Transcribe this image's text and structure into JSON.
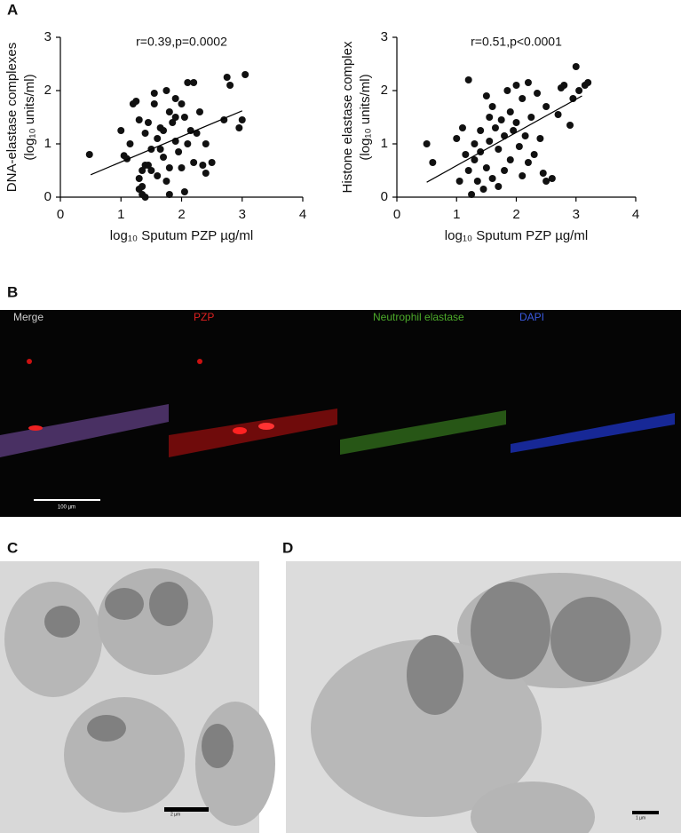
{
  "chart_data": [
    {
      "type": "scatter",
      "annotation": "r=0.39,p=0.0002",
      "y_label_lines": [
        "DNA-elastase complexes",
        "(log₁₀ units/ml)"
      ],
      "x_label": "log₁₀ Sputum PZP µg/ml",
      "x": [
        0.48,
        1.0,
        1.05,
        1.1,
        1.15,
        1.2,
        1.25,
        1.3,
        1.3,
        1.3,
        1.35,
        1.35,
        1.35,
        1.4,
        1.4,
        1.45,
        1.45,
        1.5,
        1.5,
        1.55,
        1.55,
        1.6,
        1.6,
        1.65,
        1.7,
        1.7,
        1.75,
        1.75,
        1.8,
        1.8,
        1.8,
        1.85,
        1.9,
        1.9,
        1.95,
        2.0,
        2.0,
        2.05,
        2.05,
        2.1,
        2.1,
        2.15,
        2.2,
        2.25,
        2.3,
        2.35,
        2.4,
        2.4,
        2.5,
        2.7,
        2.75,
        2.8,
        2.95,
        3.0,
        3.05,
        2.2,
        1.9,
        1.65,
        1.4
      ],
      "values": [
        0.8,
        1.25,
        0.78,
        0.72,
        1.0,
        1.75,
        1.8,
        1.45,
        0.35,
        0.15,
        0.2,
        0.5,
        0.05,
        0.6,
        1.2,
        1.4,
        0.6,
        0.9,
        0.5,
        1.75,
        1.95,
        1.1,
        0.4,
        1.3,
        1.25,
        0.75,
        2.0,
        0.3,
        1.6,
        0.05,
        0.55,
        1.4,
        1.85,
        1.05,
        0.85,
        1.75,
        0.55,
        1.5,
        0.1,
        2.15,
        1.0,
        1.25,
        0.65,
        1.2,
        1.6,
        0.6,
        0.45,
        1.0,
        0.65,
        1.45,
        2.25,
        2.1,
        1.3,
        1.45,
        2.3,
        2.15,
        1.5,
        0.9,
        0.0
      ],
      "fit": {
        "x": [
          0.5,
          3.0
        ],
        "y": [
          0.42,
          1.62
        ]
      },
      "color": "#111111",
      "xlim": [
        0,
        4
      ],
      "ylim": [
        0,
        3
      ],
      "xticks": [
        0,
        1,
        2,
        3,
        4
      ],
      "yticks": [
        0,
        1,
        2,
        3
      ]
    },
    {
      "type": "scatter",
      "annotation": "r=0.51,p<0.0001",
      "y_label_lines": [
        "Histone elastase  complex",
        "(log₁₀ units/ml)"
      ],
      "x_label": "log₁₀ Sputum PZP µg/ml",
      "x": [
        0.5,
        0.6,
        1.0,
        1.05,
        1.1,
        1.15,
        1.2,
        1.2,
        1.25,
        1.3,
        1.3,
        1.35,
        1.4,
        1.4,
        1.45,
        1.5,
        1.5,
        1.55,
        1.55,
        1.6,
        1.6,
        1.65,
        1.7,
        1.7,
        1.75,
        1.8,
        1.8,
        1.85,
        1.9,
        1.9,
        2.0,
        2.0,
        2.05,
        2.1,
        2.1,
        2.15,
        2.2,
        2.25,
        2.3,
        2.35,
        2.4,
        2.45,
        2.5,
        2.5,
        2.6,
        2.7,
        2.75,
        2.8,
        2.9,
        2.95,
        3.0,
        3.05,
        3.15,
        3.2,
        2.2,
        1.95
      ],
      "values": [
        1.0,
        0.65,
        1.1,
        0.3,
        1.3,
        0.8,
        2.2,
        0.5,
        0.05,
        0.7,
        1.0,
        0.3,
        1.25,
        0.85,
        0.15,
        1.9,
        0.55,
        1.5,
        1.05,
        0.35,
        1.7,
        1.3,
        0.9,
        0.2,
        1.45,
        1.15,
        0.5,
        2.0,
        1.6,
        0.7,
        1.4,
        2.1,
        0.95,
        1.85,
        0.4,
        1.15,
        2.15,
        1.5,
        0.8,
        1.95,
        1.1,
        0.45,
        1.7,
        0.3,
        0.35,
        1.55,
        2.05,
        2.1,
        1.35,
        1.85,
        2.45,
        2.0,
        2.1,
        2.15,
        0.65,
        1.25
      ],
      "fit": {
        "x": [
          0.5,
          3.1
        ],
        "y": [
          0.28,
          1.9
        ]
      },
      "color": "#111111",
      "xlim": [
        0,
        4
      ],
      "ylim": [
        0,
        3
      ],
      "xticks": [
        0,
        1,
        2,
        3,
        4
      ],
      "yticks": [
        0,
        1,
        2,
        3
      ]
    }
  ],
  "panels": {
    "labels": [
      "A",
      "B",
      "C",
      "D"
    ],
    "b_channels": [
      "Merge",
      "PZP",
      "Neutrophil elastase",
      "DAPI"
    ],
    "b_scale": "100 µm",
    "c_scale": "2 µm",
    "d_scale": "1 µm"
  }
}
